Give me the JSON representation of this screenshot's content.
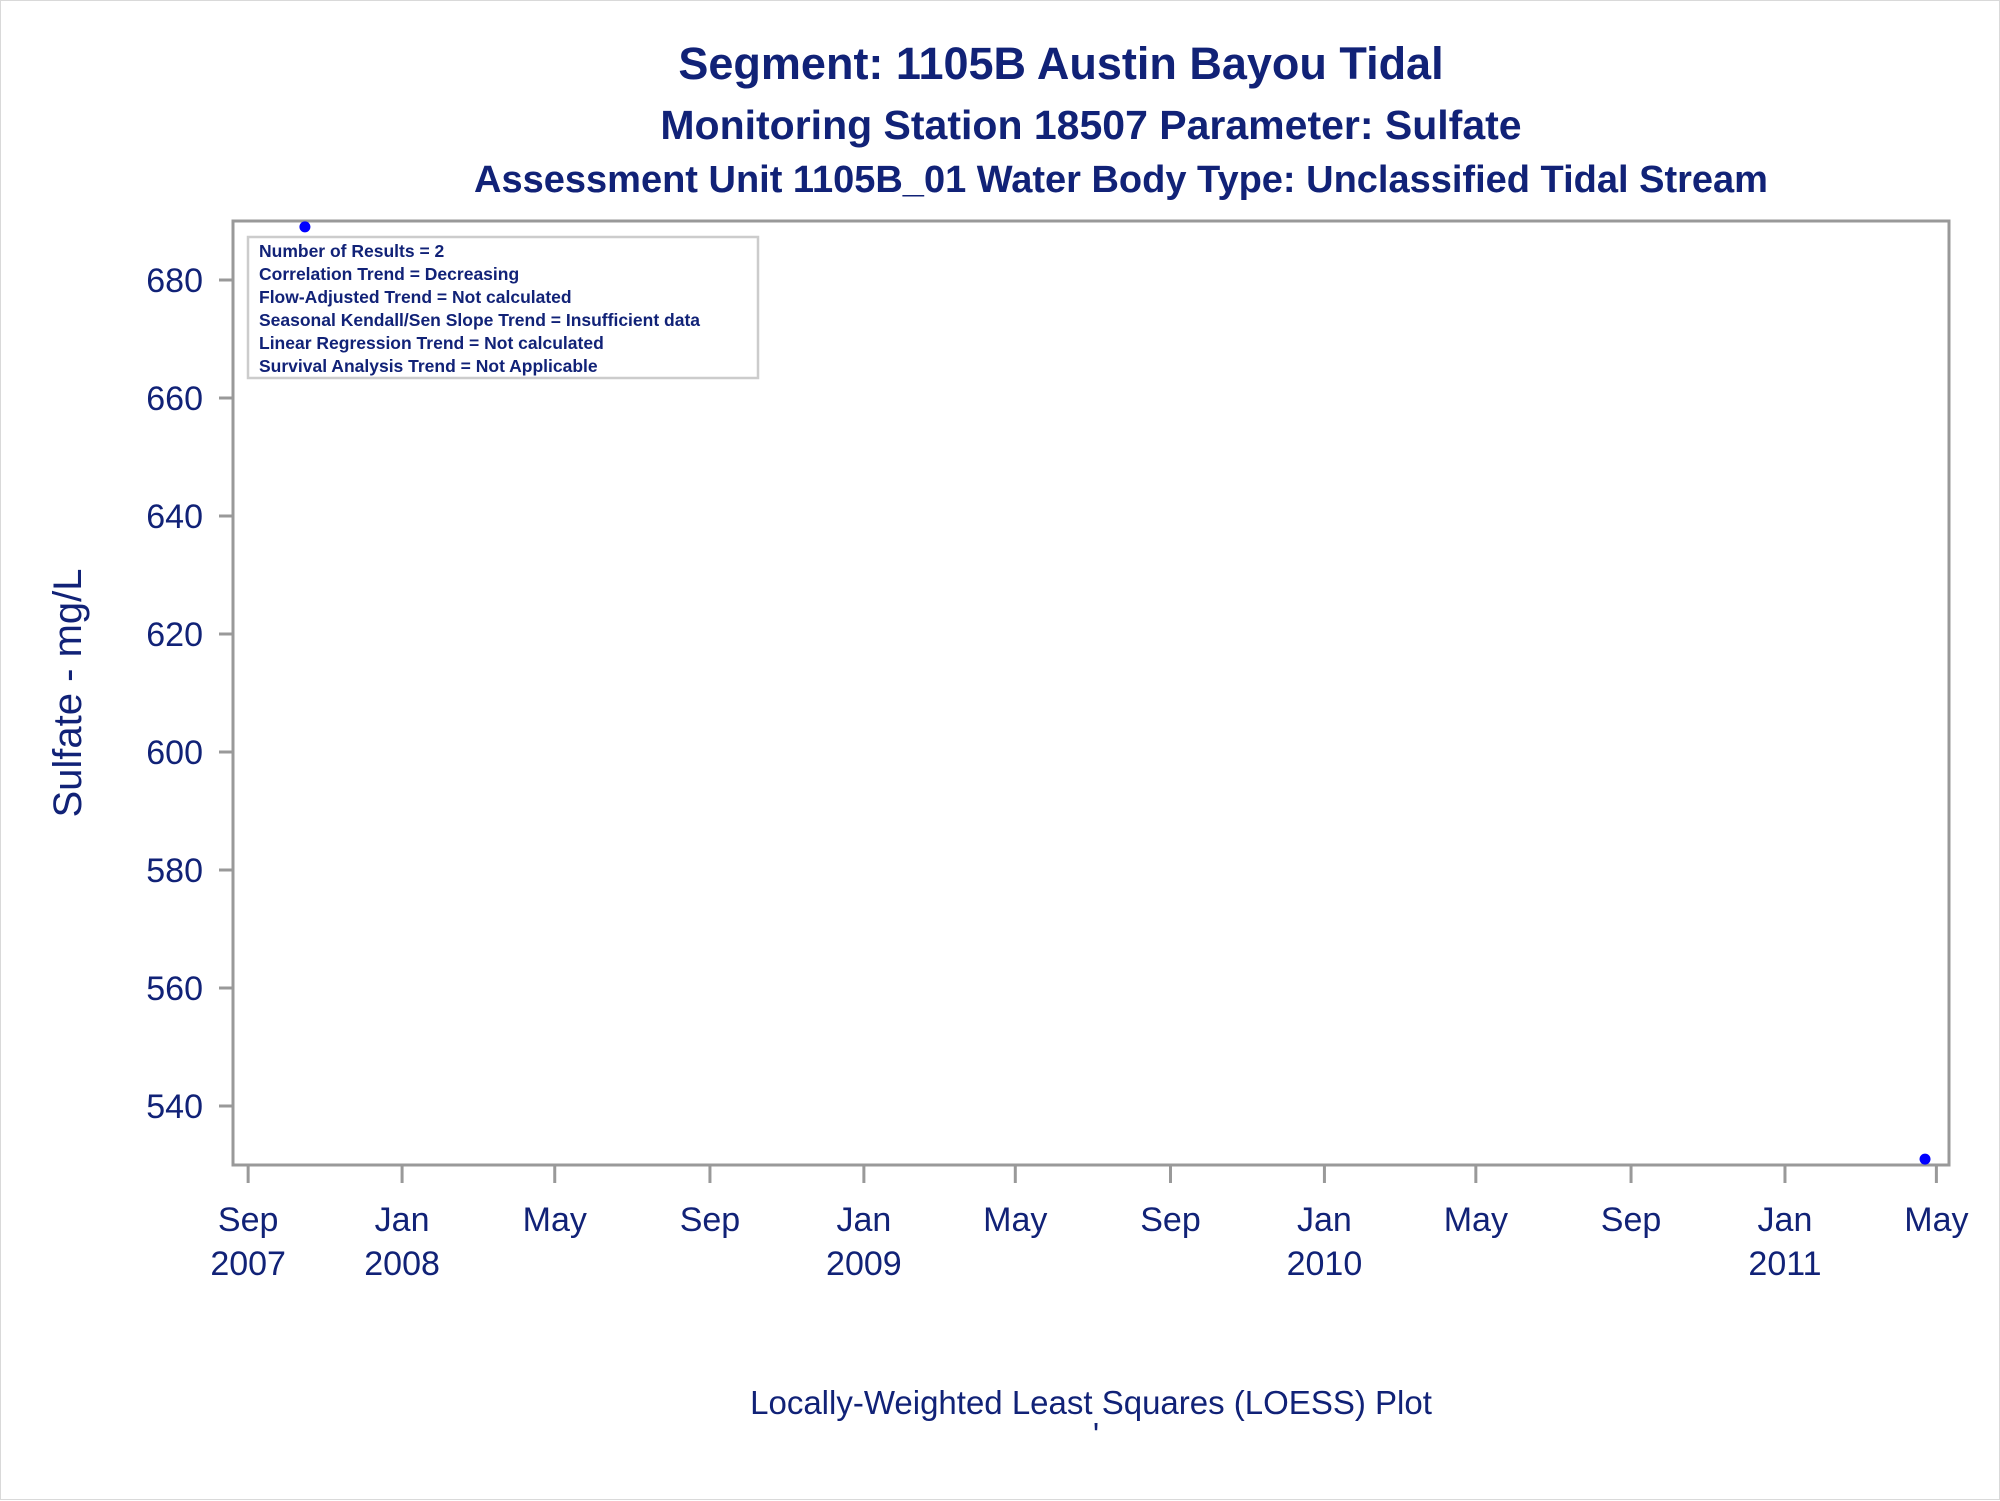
{
  "titles": {
    "line1": "Segment: 1105B  Austin Bayou Tidal",
    "line2": "Monitoring Station 18507 Parameter: Sulfate",
    "line3": "Assessment Unit 1105B_01   Water Body Type: Unclassified Tidal Stream"
  },
  "footnote": "Locally-Weighted Least Squares (LOESS) Plot",
  "footnote_mark": "'",
  "stats_box": [
    "Number of Results = 2",
    "Correlation Trend = Decreasing",
    "Flow-Adjusted Trend = Not calculated",
    "Seasonal Kendall/Sen Slope Trend = Insufficient data",
    "Linear Regression Trend = Not calculated",
    "Survival Analysis Trend = Not Applicable"
  ],
  "colors": {
    "text": "#112277",
    "marker": "#0000ff",
    "axis": "#999999"
  },
  "chart_data": {
    "type": "scatter",
    "ylabel": "Sulfate - mg/L",
    "y_ticks": [
      540,
      560,
      580,
      600,
      620,
      640,
      660,
      680
    ],
    "ylim": [
      530,
      690
    ],
    "x_ticks": [
      {
        "date": "2007-09-01",
        "line1": "Sep",
        "line2": "2007"
      },
      {
        "date": "2008-01-01",
        "line1": "Jan",
        "line2": "2008"
      },
      {
        "date": "2008-05-01",
        "line1": "May",
        "line2": ""
      },
      {
        "date": "2008-09-01",
        "line1": "Sep",
        "line2": ""
      },
      {
        "date": "2009-01-01",
        "line1": "Jan",
        "line2": "2009"
      },
      {
        "date": "2009-05-01",
        "line1": "May",
        "line2": ""
      },
      {
        "date": "2009-09-01",
        "line1": "Sep",
        "line2": ""
      },
      {
        "date": "2010-01-01",
        "line1": "Jan",
        "line2": "2010"
      },
      {
        "date": "2010-05-01",
        "line1": "May",
        "line2": ""
      },
      {
        "date": "2010-09-01",
        "line1": "Sep",
        "line2": ""
      },
      {
        "date": "2011-01-01",
        "line1": "Jan",
        "line2": "2011"
      },
      {
        "date": "2011-05-01",
        "line1": "May",
        "line2": ""
      }
    ],
    "xlim": [
      "2007-08-20",
      "2011-05-11"
    ],
    "points": [
      {
        "x": "2007-10-16",
        "y": 689
      },
      {
        "x": "2011-04-22",
        "y": 531
      }
    ],
    "grid": false,
    "legend": "none"
  }
}
